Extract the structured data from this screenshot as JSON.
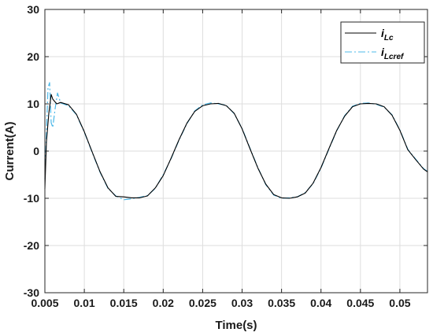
{
  "chart_data": {
    "type": "line",
    "xlabel": "Time(s)",
    "ylabel": "Current(A)",
    "xlim": [
      0.005,
      0.0535
    ],
    "ylim": [
      -30,
      30
    ],
    "xticks": [
      0.005,
      0.01,
      0.015,
      0.02,
      0.025,
      0.03,
      0.035,
      0.04,
      0.045,
      0.05
    ],
    "xtick_labels": [
      "0.005",
      "0.01",
      "0.015",
      "0.02",
      "0.025",
      "0.03",
      "0.035",
      "0.04",
      "0.045",
      "0.05"
    ],
    "yticks": [
      -30,
      -20,
      -10,
      0,
      10,
      20,
      30
    ],
    "ytick_labels": [
      "-30",
      "-20",
      "-10",
      "0",
      "10",
      "20",
      "30"
    ],
    "grid": true,
    "legend_position": "top-right",
    "series": [
      {
        "name_main": "i",
        "name_sub": "Lc",
        "color": "#000000",
        "style": "solid",
        "x": [
          0.005,
          0.0052,
          0.0055,
          0.0058,
          0.006,
          0.0065,
          0.007,
          0.008,
          0.009,
          0.01,
          0.011,
          0.012,
          0.013,
          0.014,
          0.015,
          0.016,
          0.017,
          0.018,
          0.019,
          0.02,
          0.021,
          0.022,
          0.023,
          0.024,
          0.025,
          0.026,
          0.027,
          0.028,
          0.029,
          0.03,
          0.031,
          0.032,
          0.033,
          0.034,
          0.035,
          0.036,
          0.037,
          0.038,
          0.039,
          0.04,
          0.041,
          0.042,
          0.043,
          0.044,
          0.045,
          0.046,
          0.047,
          0.048,
          0.049,
          0.05,
          0.051,
          0.052,
          0.053,
          0.0535
        ],
        "values": [
          -8,
          2,
          8,
          12,
          11,
          10,
          10.3,
          9.8,
          7.8,
          4.1,
          -0.2,
          -4.4,
          -7.8,
          -9.6,
          -9.7,
          -9.9,
          -9.9,
          -9.5,
          -7.8,
          -5.2,
          -1.5,
          2.4,
          5.9,
          8.4,
          9.6,
          10.0,
          10.1,
          9.6,
          8.0,
          4.7,
          0.5,
          -3.6,
          -7.0,
          -9.2,
          -9.9,
          -10.0,
          -9.7,
          -8.9,
          -6.8,
          -3.5,
          0.5,
          4.4,
          7.4,
          9.4,
          10.0,
          10.1,
          10.0,
          9.4,
          7.6,
          4.4,
          0.3,
          -1.8,
          -3.8,
          -4.4
        ]
      },
      {
        "name_main": "i",
        "name_sub": "Lcref",
        "color": "#4db8e8",
        "style": "dashed",
        "x": [
          0.005,
          0.0052,
          0.0054,
          0.0056,
          0.0058,
          0.006,
          0.0063,
          0.0066,
          0.007,
          0.008,
          0.009,
          0.01,
          0.011,
          0.012,
          0.013,
          0.014,
          0.015,
          0.016,
          0.017,
          0.018,
          0.019,
          0.02,
          0.021,
          0.022,
          0.023,
          0.024,
          0.025,
          0.026,
          0.027,
          0.028,
          0.029,
          0.03,
          0.031,
          0.032,
          0.033,
          0.034,
          0.035,
          0.036,
          0.037,
          0.038,
          0.039,
          0.04,
          0.041,
          0.042,
          0.043,
          0.044,
          0.045,
          0.046,
          0.047,
          0.048,
          0.049,
          0.05,
          0.051,
          0.052,
          0.053,
          0.0535
        ],
        "values": [
          -6,
          4,
          13.5,
          14.5,
          6,
          5,
          9,
          12.3,
          10.2,
          9.6,
          7.7,
          4.0,
          -0.3,
          -4.5,
          -7.9,
          -9.5,
          -10.3,
          -10.1,
          -9.8,
          -9.4,
          -7.9,
          -5.0,
          -1.6,
          2.3,
          5.8,
          8.5,
          9.8,
          10.2,
          10.0,
          9.7,
          7.9,
          4.8,
          0.6,
          -3.5,
          -7.1,
          -9.3,
          -10.0,
          -9.9,
          -9.7,
          -8.8,
          -6.9,
          -3.6,
          0.4,
          4.3,
          7.5,
          9.5,
          10.1,
          10.2,
          9.9,
          9.3,
          7.7,
          4.5,
          0.4,
          -1.7,
          -3.7,
          -4.3
        ]
      }
    ]
  }
}
